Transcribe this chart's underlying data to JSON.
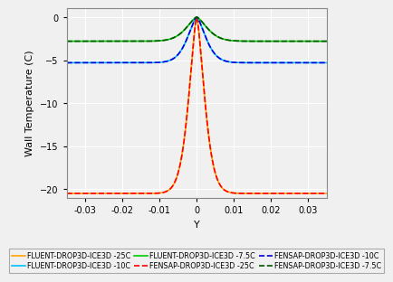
{
  "title": "",
  "xlabel": "Y",
  "ylabel": "Wall Temperature (C)",
  "xlim": [
    -0.035,
    0.035
  ],
  "ylim": [
    -21,
    1
  ],
  "yticks": [
    0,
    -5,
    -10,
    -15,
    -20
  ],
  "xticks": [
    -0.03,
    -0.02,
    -0.01,
    0,
    0.01,
    0.02,
    0.03
  ],
  "bg_color": "#f0f0f0",
  "grid_color": "#ffffff",
  "series": [
    {
      "name": "FLUENT-DROP3D-ICE3D -25C",
      "color": "#ffa500",
      "linestyle": "-",
      "linewidth": 1.2,
      "base_temp": -20.5,
      "peak_temp": 0.0,
      "sigma": 0.003,
      "power": 1.5,
      "type": "fluent"
    },
    {
      "name": "FLUENT-DROP3D-ICE3D -10C",
      "color": "#00bfff",
      "linestyle": "-",
      "linewidth": 1.2,
      "base_temp": -5.3,
      "peak_temp": 0.0,
      "sigma": 0.0035,
      "power": 1.5,
      "type": "fluent"
    },
    {
      "name": "FLUENT-DROP3D-ICE3D -7.5C",
      "color": "#00cc00",
      "linestyle": "-",
      "linewidth": 1.2,
      "base_temp": -2.8,
      "peak_temp": 0.0,
      "sigma": 0.004,
      "power": 1.5,
      "type": "fluent"
    },
    {
      "name": "FENSAP-DROP3D-ICE3D -25C",
      "color": "#ff0000",
      "linestyle": "--",
      "linewidth": 1.2,
      "base_temp": -20.5,
      "peak_temp": 0.0,
      "sigma": 0.003,
      "power": 1.5,
      "type": "fensap"
    },
    {
      "name": "FENSAP-DROP3D-ICE3D -10C",
      "color": "#0000dd",
      "linestyle": "--",
      "linewidth": 1.2,
      "base_temp": -5.3,
      "peak_temp": 0.0,
      "sigma": 0.0035,
      "power": 1.5,
      "type": "fensap"
    },
    {
      "name": "FENSAP-DROP3D-ICE3D -7.5C",
      "color": "#005500",
      "linestyle": "--",
      "linewidth": 1.2,
      "base_temp": -2.8,
      "peak_temp": 0.0,
      "sigma": 0.004,
      "power": 1.5,
      "type": "fensap"
    }
  ],
  "legend_fontsize": 5.8,
  "tick_fontsize": 7,
  "label_fontsize": 8
}
